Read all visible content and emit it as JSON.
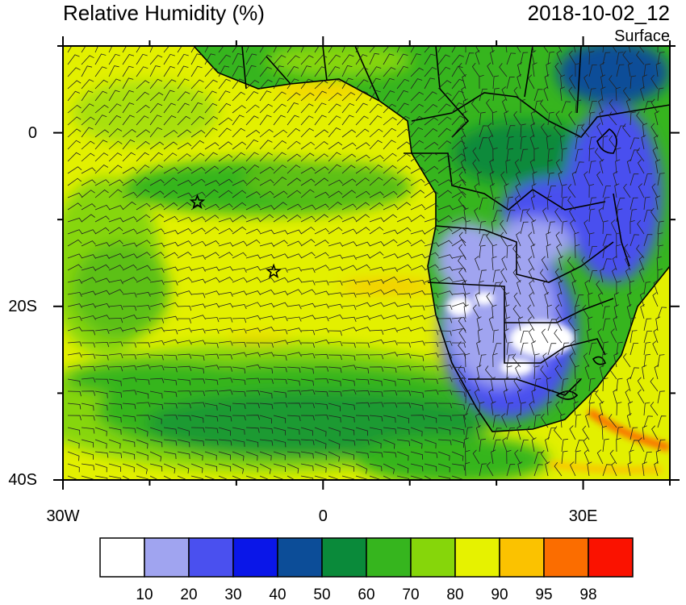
{
  "header": {
    "title": "Relative Humidity (%)",
    "datetime": "2018-10-02_12",
    "level": "Surface"
  },
  "map": {
    "projection": "cylindrical-equidistant",
    "lon_range": [
      -30,
      40
    ],
    "lat_range": [
      -40,
      10
    ],
    "x_tick_labels": [
      {
        "lon": -30,
        "label": "30W"
      },
      {
        "lon": 0,
        "label": "0"
      },
      {
        "lon": 30,
        "label": "30E"
      }
    ],
    "y_tick_labels": [
      {
        "lat": 0,
        "label": "0"
      },
      {
        "lat": -20,
        "label": "20S"
      },
      {
        "lat": -40,
        "label": "40S"
      }
    ],
    "markers": [
      {
        "type": "star",
        "lon": -14.5,
        "lat": -8
      },
      {
        "type": "star",
        "lon": -5.7,
        "lat": -16
      }
    ],
    "overlay": "wind-barbs"
  },
  "colorbar": {
    "colors": [
      "#ffffff",
      "#a0a4f0",
      "#4a50ef",
      "#0a16e8",
      "#0c4d98",
      "#0a8a3a",
      "#36b51e",
      "#86d60a",
      "#e6f200",
      "#fbc200",
      "#fb6d00",
      "#fa1200"
    ],
    "labels": [
      "10",
      "20",
      "30",
      "40",
      "50",
      "60",
      "70",
      "80",
      "90",
      "95",
      "98"
    ]
  }
}
